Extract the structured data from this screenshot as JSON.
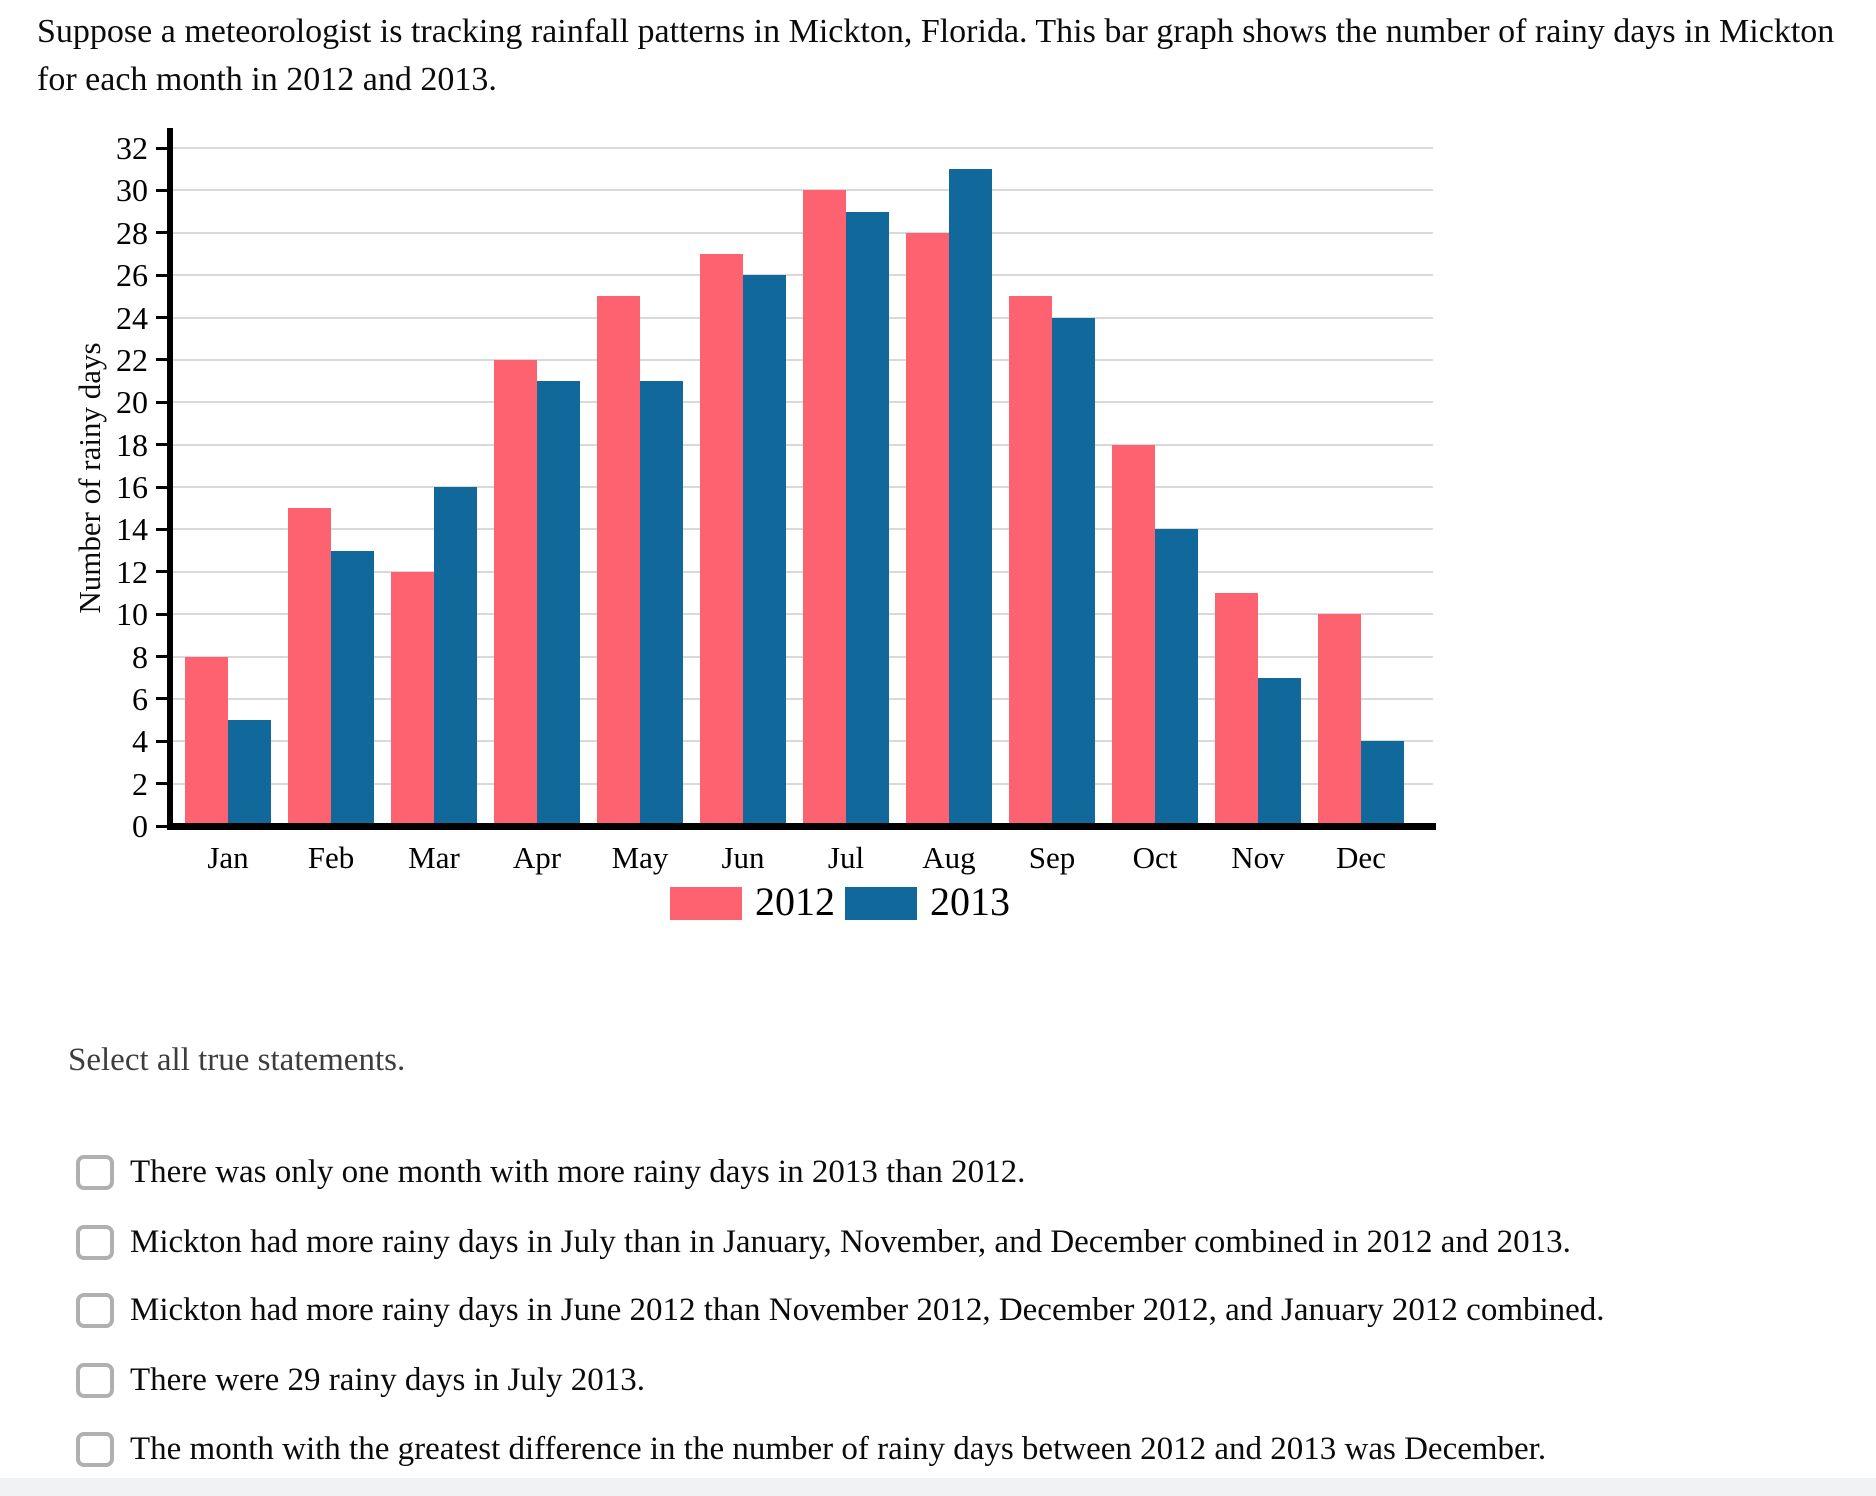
{
  "header": {
    "prompt": "Suppose a meteorologist is tracking rainfall patterns in Mickton, Florida. This bar graph shows the number of rainy days in Mickton for each month in 2012 and 2013."
  },
  "chart_data": {
    "type": "bar",
    "title": "",
    "categories": [
      "Jan",
      "Feb",
      "Mar",
      "Apr",
      "May",
      "Jun",
      "Jul",
      "Aug",
      "Sep",
      "Oct",
      "Nov",
      "Dec"
    ],
    "series": [
      {
        "name": "2012",
        "color": "#FC6270",
        "values": [
          8,
          15,
          12,
          22,
          25,
          27,
          30,
          28,
          25,
          18,
          11,
          10
        ]
      },
      {
        "name": "2013",
        "color": "#11699B",
        "values": [
          5,
          13,
          16,
          21,
          21,
          26,
          29,
          31,
          24,
          14,
          7,
          4
        ]
      }
    ],
    "xlabel": "",
    "ylabel": "Number of rainy days",
    "ylim": [
      0,
      32
    ],
    "ytick_step": 2,
    "grid": true,
    "grid_color": "#d9d9d9",
    "axis_color": "#000000",
    "legend_position": "bottom",
    "legend_labels": [
      "2012",
      "2013"
    ]
  },
  "question": {
    "instruction": "Select all true statements.",
    "options": [
      {
        "label": "There was only one month with more rainy days in 2013 than 2012.",
        "checked": false
      },
      {
        "label": "Mickton had more rainy days in July than in January, November, and December combined in 2012 and 2013.",
        "checked": false
      },
      {
        "label": "Mickton had more rainy days in June 2012 than November 2012, December 2012, and January 2012 combined.",
        "checked": false
      },
      {
        "label": "There were 29 rainy days in July 2013.",
        "checked": false
      },
      {
        "label": "The month with the greatest difference in the number of rainy days between 2012 and 2013 was December.",
        "checked": false
      }
    ]
  }
}
